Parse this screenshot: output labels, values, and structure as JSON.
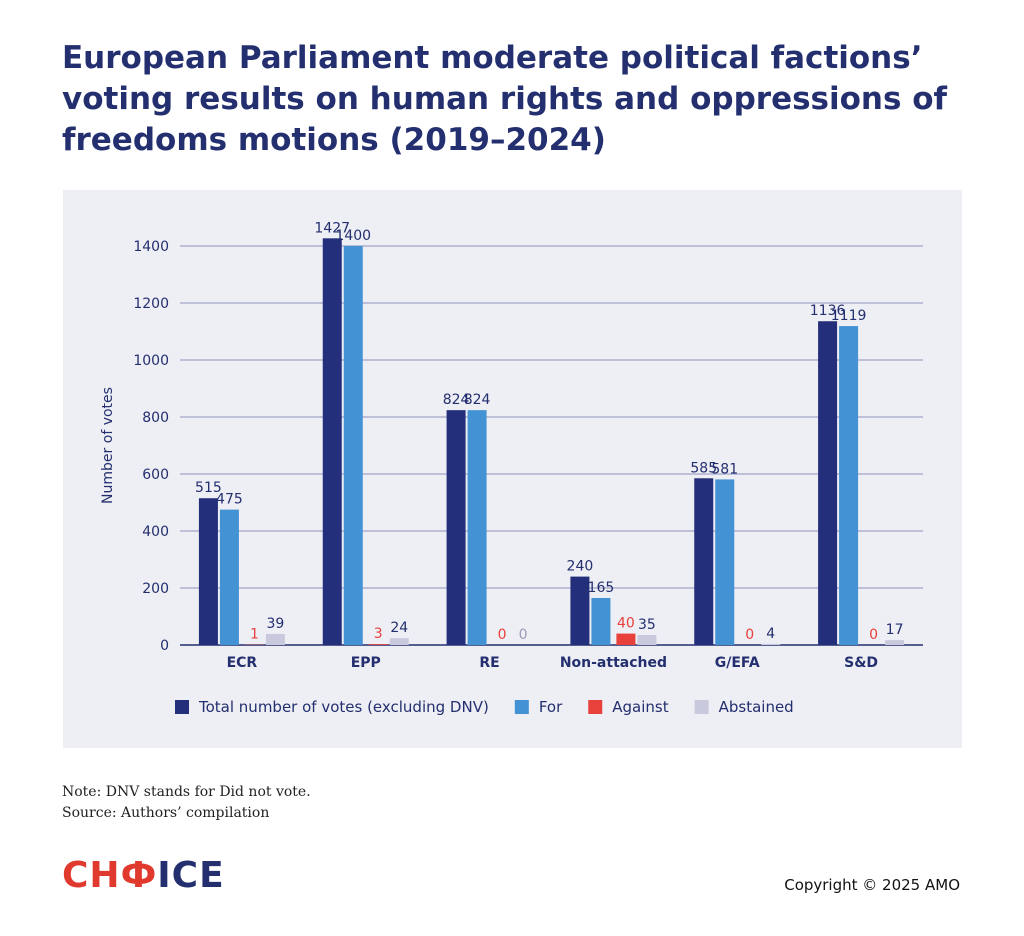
{
  "title": "European Parliament moderate political factions’ voting results on human rights and oppressions of freedoms motions (2019–2024)",
  "note": "Note: DNV stands for Did not vote.",
  "source": "Source: Authors’ compilation",
  "logo": {
    "text": "CHOICE",
    "colors": [
      "#e03a2f",
      "#232f6e"
    ]
  },
  "copyright": "Copyright © 2025 AMO",
  "chart_data": {
    "type": "bar",
    "title": "",
    "xlabel": "",
    "ylabel": "Number of votes",
    "ylim": [
      0,
      1400
    ],
    "yticks": [
      0,
      200,
      400,
      600,
      800,
      1000,
      1200,
      1400
    ],
    "grid": true,
    "legend": "bottom",
    "categories": [
      "ECR",
      "EPP",
      "RE",
      "Non-attached",
      "G/EFA",
      "S&D"
    ],
    "series": [
      {
        "name": "Total number of votes (excluding DNV)",
        "color": "#232f7a",
        "values": [
          515,
          1427,
          824,
          240,
          585,
          1136
        ]
      },
      {
        "name": "For",
        "color": "#4392d3",
        "values": [
          475,
          1400,
          824,
          165,
          581,
          1119
        ]
      },
      {
        "name": "Against",
        "color": "#e8413b",
        "values": [
          1,
          3,
          0,
          40,
          0,
          0
        ]
      },
      {
        "name": "Abstained",
        "color": "#c9c9dd",
        "values": [
          39,
          24,
          0,
          35,
          4,
          17
        ]
      }
    ]
  }
}
